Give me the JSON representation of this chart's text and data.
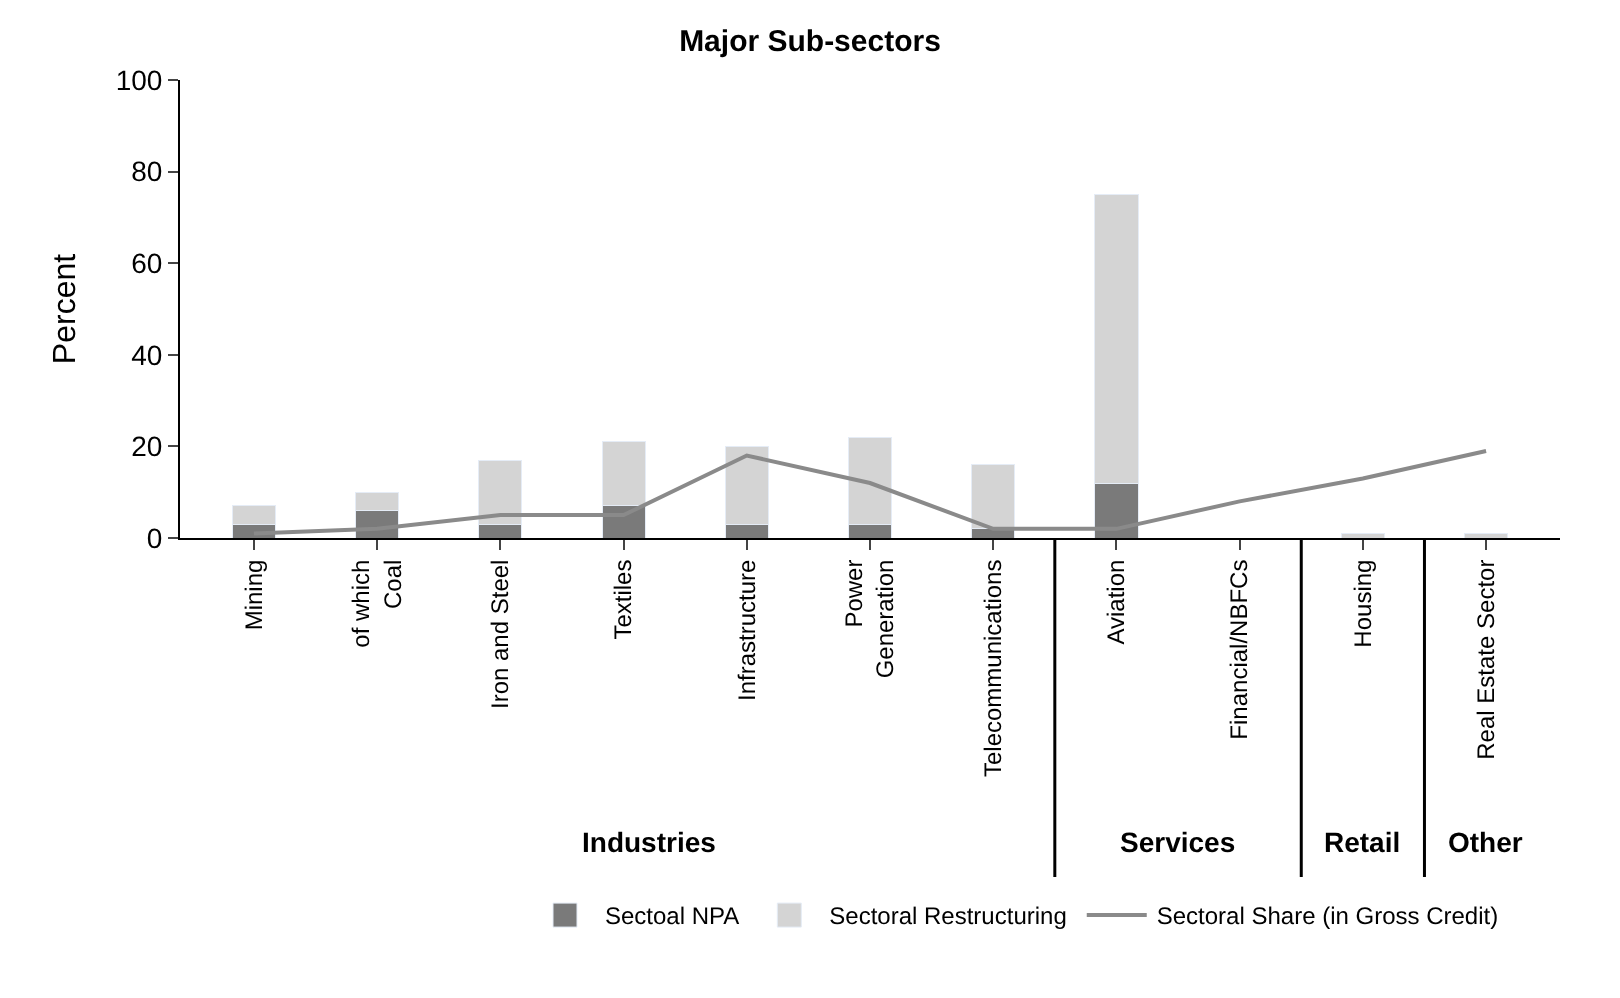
{
  "chart_data": {
    "type": "bar",
    "title": "Major Sub-sectors",
    "ylabel": "Percent",
    "categories": [
      "Mining",
      "of which\nCoal",
      "Iron and Steel",
      "Textiles",
      "Infrastructure",
      "Power\nGeneration",
      "Telecommunications",
      "Aviation",
      "Financial/NBFCs",
      "Housing",
      "Real Estate Sector"
    ],
    "series": [
      {
        "name": "Sectoal NPA",
        "color": "#7a7a7a",
        "values": [
          3,
          6,
          3,
          7,
          3,
          3,
          2,
          12,
          null,
          null,
          null
        ]
      },
      {
        "name": "Sectoral Restructuring",
        "color": "#d4d4d4",
        "values": [
          4,
          4,
          14,
          14,
          17,
          19,
          14,
          63,
          null,
          1,
          1
        ]
      },
      {
        "name": "Sectoral Share (in Gross Credit)",
        "type": "line",
        "color": "#8a8a8a",
        "values": [
          1,
          2,
          5,
          5,
          18,
          12,
          2,
          2,
          8,
          13,
          19
        ]
      }
    ],
    "stacked": true,
    "ylim": [
      0,
      100
    ],
    "yticks": [
      0,
      20,
      40,
      60,
      80,
      100
    ],
    "legend": "bottom",
    "annotations": [
      "Industries",
      "Services",
      "Retail",
      "Other"
    ]
  }
}
